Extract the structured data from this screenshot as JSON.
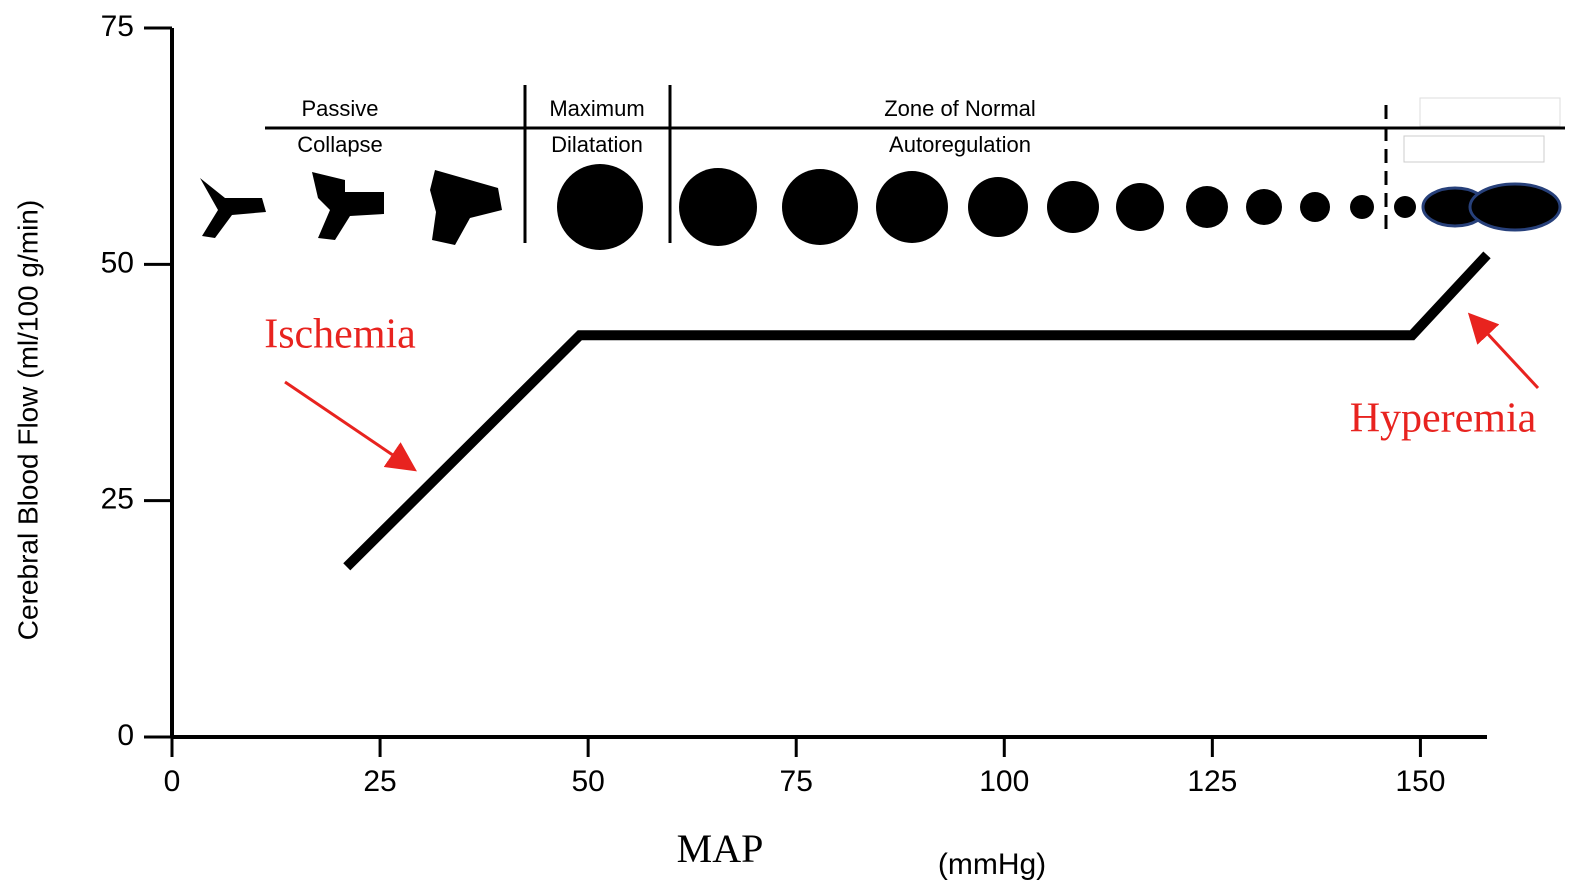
{
  "chart_data": {
    "type": "line",
    "y_label": "Cerebral Blood Flow (ml/100 g/min)",
    "x_label": "MAP",
    "x_unit": "(mmHg)",
    "x": [
      21,
      49,
      149,
      158
    ],
    "values": [
      18,
      42.5,
      42.5,
      51
    ],
    "color": "#000000",
    "xlim": [
      0,
      158
    ],
    "ylim": [
      0,
      75
    ],
    "xticks": [
      0,
      25,
      50,
      75,
      100,
      125,
      150
    ],
    "yticks": [
      0,
      25,
      50,
      75
    ],
    "zones": [
      {
        "lines": [
          "Passive",
          "Collapse"
        ]
      },
      {
        "lines": [
          "Maximum",
          "Dilatation"
        ]
      },
      {
        "lines": [
          "Zone of Normal",
          "Autoregulation"
        ]
      }
    ],
    "annotations": [
      {
        "text": "Ischemia",
        "color": "#e8231f"
      },
      {
        "text": "Hyperemia",
        "color": "#e8231f"
      }
    ]
  }
}
